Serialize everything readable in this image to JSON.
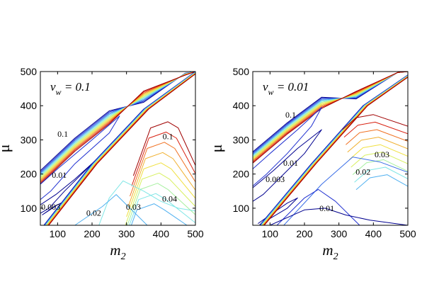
{
  "chart_data": [
    {
      "type": "contour",
      "title_var": "v",
      "title_sub": "w",
      "title_val": "= 0.1",
      "xlabel": "m",
      "xlabel_sub": "2",
      "ylabel": "μ",
      "xlim": [
        50,
        500
      ],
      "ylim": [
        50,
        500
      ],
      "xticks": [
        "100",
        "200",
        "300",
        "400",
        "500"
      ],
      "yticks": [
        "100",
        "200",
        "300",
        "400",
        "500"
      ],
      "grid": false,
      "contour_labels": [
        {
          "text": "0.1",
          "x": 115,
          "y": 318
        },
        {
          "text": "0.1",
          "x": 420,
          "y": 310
        },
        {
          "text": "0.01",
          "x": 105,
          "y": 197
        },
        {
          "text": "0.003",
          "x": 80,
          "y": 104
        },
        {
          "text": "0.02",
          "x": 205,
          "y": 86
        },
        {
          "text": "0.03",
          "x": 320,
          "y": 104
        },
        {
          "text": "0.04",
          "x": 425,
          "y": 128
        }
      ]
    },
    {
      "type": "contour",
      "title_var": "v",
      "title_sub": "w",
      "title_val": "= 0.01",
      "xlabel": "m",
      "xlabel_sub": "2",
      "ylabel": "μ",
      "xlim": [
        50,
        500
      ],
      "ylim": [
        50,
        500
      ],
      "xticks": [
        "100",
        "200",
        "300",
        "400",
        "500"
      ],
      "yticks": [
        "100",
        "200",
        "300",
        "400",
        "500"
      ],
      "grid": false,
      "contour_labels": [
        {
          "text": "0.1",
          "x": 160,
          "y": 373
        },
        {
          "text": "0.01",
          "x": 160,
          "y": 233
        },
        {
          "text": "0.003",
          "x": 115,
          "y": 185
        },
        {
          "text": "0.03",
          "x": 425,
          "y": 257
        },
        {
          "text": "0.02",
          "x": 370,
          "y": 207
        },
        {
          "text": "0.01",
          "x": 265,
          "y": 100
        }
      ]
    }
  ],
  "colors": [
    "#00008f",
    "#1f2fd0",
    "#3a6ee6",
    "#4fb0f0",
    "#7fe6e6",
    "#a7f0a0",
    "#d8f060",
    "#f0e040",
    "#f0b030",
    "#f07020",
    "#d82010",
    "#a00000"
  ]
}
